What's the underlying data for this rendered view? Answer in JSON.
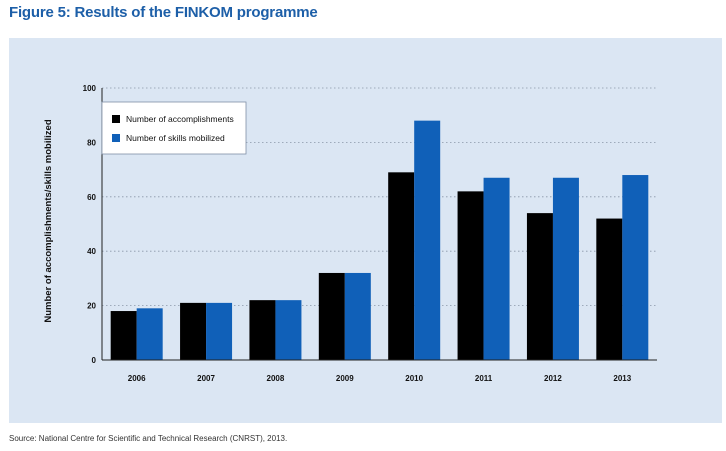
{
  "figure": {
    "title": "Figure 5: Results of the FINKOM programme",
    "source": "Source: National Centre for Scientific and Technical Research (CNRST), 2013."
  },
  "colors": {
    "title": "#1d5fa8",
    "panel": "#dbe6f3",
    "series_accomplishments": "#000000",
    "series_skills": "#1060b8"
  },
  "chart_data": {
    "type": "bar",
    "categories": [
      "2006",
      "2007",
      "2008",
      "2009",
      "2010",
      "2011",
      "2012",
      "2013"
    ],
    "series": [
      {
        "name": "Number of accomplishments",
        "color": "#000000",
        "values": [
          18,
          21,
          22,
          32,
          69,
          62,
          54,
          52
        ]
      },
      {
        "name": "Number of skills mobilized",
        "color": "#1060b8",
        "values": [
          19,
          21,
          22,
          32,
          88,
          67,
          67,
          68
        ]
      }
    ],
    "xlabel": "",
    "ylabel": "Number of accomplishments/skills mobilized",
    "ylim": [
      0,
      100
    ],
    "yticks": [
      0,
      20,
      40,
      60,
      80,
      100
    ],
    "grid": "horizontal dotted",
    "legend": "top-left"
  }
}
